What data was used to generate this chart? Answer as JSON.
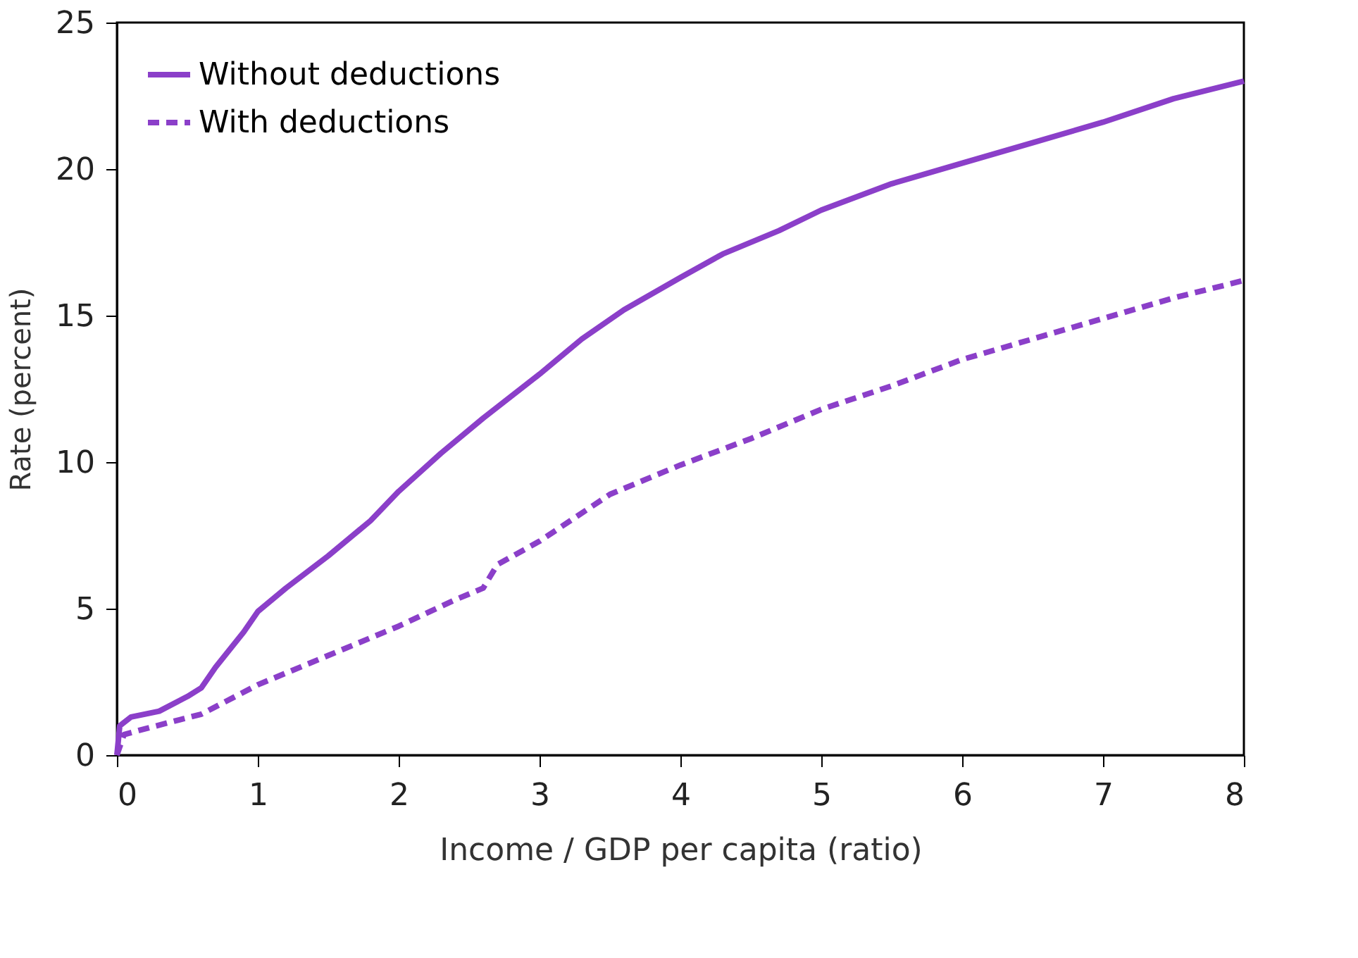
{
  "chart_data": {
    "type": "line",
    "xlabel": "Income / GDP per capita (ratio)",
    "ylabel": "Rate (percent)",
    "xlim": [
      0,
      8
    ],
    "xticks": [
      0,
      1,
      2,
      3,
      4,
      5,
      6,
      7,
      8
    ],
    "ylim": [
      0,
      25
    ],
    "yticks": [
      0,
      5,
      10,
      15,
      20,
      25
    ],
    "grid": false,
    "legend": "top left",
    "series": [
      {
        "name": "Without deductions",
        "color": "#8b3fc9",
        "line_style": "solid",
        "x": [
          0,
          0.02,
          0.1,
          0.3,
          0.5,
          0.6,
          0.7,
          0.9,
          1.0,
          1.2,
          1.5,
          1.8,
          2.0,
          2.3,
          2.6,
          3.0,
          3.3,
          3.6,
          4.0,
          4.3,
          4.7,
          5.0,
          5.5,
          6.0,
          6.5,
          7.0,
          7.5,
          8.0
        ],
        "values": [
          0,
          1.0,
          1.3,
          1.5,
          2.0,
          2.3,
          3.0,
          4.2,
          4.9,
          5.7,
          6.8,
          8.0,
          9.0,
          10.3,
          11.5,
          13.0,
          14.2,
          15.2,
          16.3,
          17.1,
          17.9,
          18.6,
          19.5,
          20.2,
          20.9,
          21.6,
          22.4,
          23.0
        ]
      },
      {
        "name": "With deductions",
        "color": "#8b3fc9",
        "line_style": "dashed",
        "x": [
          0,
          0.05,
          0.2,
          0.6,
          1.0,
          1.5,
          2.0,
          2.4,
          2.6,
          2.7,
          3.0,
          3.5,
          4.0,
          4.5,
          5.0,
          5.5,
          6.0,
          6.5,
          7.0,
          7.5,
          8.0
        ],
        "values": [
          0,
          0.7,
          0.9,
          1.4,
          2.4,
          3.4,
          4.4,
          5.3,
          5.7,
          6.5,
          7.3,
          8.9,
          9.9,
          10.8,
          11.8,
          12.6,
          13.5,
          14.2,
          14.9,
          15.6,
          16.2
        ]
      }
    ]
  }
}
